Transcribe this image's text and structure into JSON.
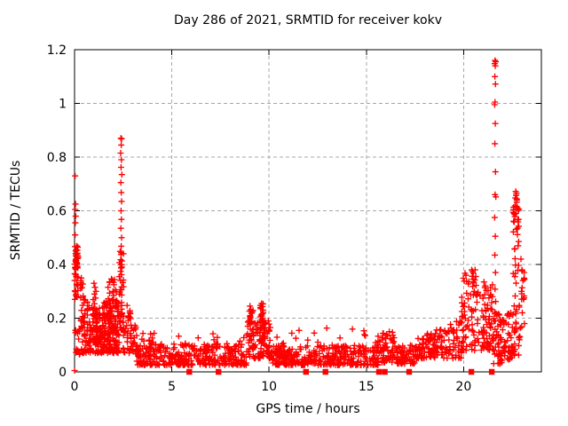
{
  "chart_data": {
    "type": "scatter",
    "title": "Day 286 of 2021, SRMTID for receiver kokv",
    "xlabel": "GPS time / hours",
    "ylabel": "SRMTID / TECUs",
    "meta": {
      "year": "2021",
      "day_of_year": "286",
      "receiver": "kokv"
    },
    "xlim": [
      0,
      24
    ],
    "ylim": [
      0,
      1.2
    ],
    "xticks": {
      "values": [
        0,
        5,
        10,
        15,
        20
      ],
      "labels": [
        "0",
        "5",
        "10",
        "15",
        "20"
      ]
    },
    "yticks": {
      "values": [
        0,
        0.2,
        0.4,
        0.6,
        0.8,
        1.0,
        1.2
      ],
      "labels": [
        "0",
        "0.2",
        "0.4",
        "0.6",
        "0.8",
        "1",
        "1.2"
      ]
    },
    "grid": {
      "show": true,
      "color": "#a8a8a8",
      "dash": [
        4,
        3
      ],
      "x_at": [
        5,
        10,
        15,
        20
      ],
      "y_at": [
        0.2,
        0.4,
        0.6,
        0.8,
        1.0
      ]
    },
    "legend": "none",
    "series": [
      {
        "name": "SRMTID",
        "marker": "plus",
        "color": "#ff0000"
      }
    ],
    "prng_seed": 286,
    "points": [
      [
        0.03,
        0.73
      ],
      [
        0.05,
        0.625
      ],
      [
        0.03,
        0.605
      ],
      [
        0.06,
        0.58
      ],
      [
        0.04,
        0.555
      ],
      [
        0.03,
        0.51
      ],
      [
        0.06,
        0.44
      ],
      [
        0.02,
        0.27
      ],
      [
        0.05,
        0.155
      ],
      [
        0.0,
        0.005
      ],
      [
        1.0,
        0.33
      ],
      [
        1.05,
        0.315
      ],
      [
        1.1,
        0.3
      ],
      [
        1.02,
        0.29
      ],
      [
        1.08,
        0.275
      ],
      [
        2.38,
        0.87
      ],
      [
        2.42,
        0.868
      ],
      [
        2.4,
        0.845
      ],
      [
        2.37,
        0.815
      ],
      [
        2.41,
        0.79
      ],
      [
        2.39,
        0.762
      ],
      [
        2.43,
        0.735
      ],
      [
        2.38,
        0.705
      ],
      [
        2.4,
        0.668
      ],
      [
        2.42,
        0.635
      ],
      [
        2.39,
        0.6
      ],
      [
        2.41,
        0.568
      ],
      [
        2.38,
        0.535
      ],
      [
        2.42,
        0.5
      ],
      [
        2.4,
        0.468
      ],
      [
        2.39,
        0.437
      ],
      [
        2.43,
        0.413
      ],
      [
        2.4,
        0.388
      ],
      [
        2.41,
        0.362
      ],
      [
        2.37,
        0.34
      ],
      [
        9.02,
        0.245
      ],
      [
        9.06,
        0.232
      ],
      [
        9.1,
        0.218
      ],
      [
        9.04,
        0.203
      ],
      [
        9.62,
        0.255
      ],
      [
        9.66,
        0.243
      ],
      [
        9.7,
        0.23
      ],
      [
        9.64,
        0.216
      ],
      [
        9.68,
        0.2
      ],
      [
        20.42,
        0.38
      ],
      [
        20.46,
        0.374
      ],
      [
        20.5,
        0.367
      ],
      [
        20.44,
        0.356
      ],
      [
        20.49,
        0.345
      ],
      [
        20.53,
        0.332
      ],
      [
        20.47,
        0.318
      ],
      [
        20.55,
        0.3
      ],
      [
        21.05,
        0.335
      ],
      [
        21.12,
        0.32
      ],
      [
        21.17,
        0.303
      ],
      [
        21.08,
        0.288
      ],
      [
        21.62,
        1.16
      ],
      [
        21.65,
        1.155
      ],
      [
        21.6,
        1.148
      ],
      [
        21.63,
        1.14
      ],
      [
        21.61,
        1.1
      ],
      [
        21.64,
        1.072
      ],
      [
        21.62,
        1.005
      ],
      [
        21.6,
        0.995
      ],
      [
        21.63,
        0.925
      ],
      [
        21.61,
        0.85
      ],
      [
        21.64,
        0.745
      ],
      [
        21.62,
        0.66
      ],
      [
        21.66,
        0.652
      ],
      [
        21.6,
        0.575
      ],
      [
        21.63,
        0.505
      ],
      [
        21.61,
        0.435
      ],
      [
        21.64,
        0.37
      ],
      [
        21.62,
        0.308
      ],
      [
        21.65,
        0.262
      ],
      [
        21.61,
        0.222
      ],
      [
        21.63,
        0.19
      ],
      [
        21.62,
        0.158
      ],
      [
        21.66,
        0.128
      ],
      [
        22.68,
        0.672
      ],
      [
        22.72,
        0.665
      ],
      [
        22.7,
        0.658
      ],
      [
        22.66,
        0.648
      ],
      [
        22.74,
        0.64
      ],
      [
        22.95,
        0.42
      ],
      [
        23.0,
        0.38
      ],
      [
        23.05,
        0.34
      ],
      [
        22.98,
        0.3
      ],
      [
        23.08,
        0.27
      ],
      [
        23.02,
        0.22
      ]
    ],
    "clusters": [
      {
        "x": [
          0.0,
          0.18
        ],
        "y": [
          0.27,
          0.47
        ],
        "n": 50,
        "bias": 0.85
      },
      {
        "x": [
          0.02,
          0.3
        ],
        "y": [
          0.04,
          0.16
        ],
        "n": 12,
        "bias": 1.0
      },
      {
        "x": [
          0.3,
          0.55
        ],
        "y": [
          0.13,
          0.35
        ],
        "n": 22,
        "bias": 1.4
      },
      {
        "x": [
          0.35,
          2.3
        ],
        "y": [
          0.07,
          0.27
        ],
        "n": 230,
        "bias": 1.6
      },
      {
        "x": [
          0.9,
          1.6
        ],
        "y": [
          0.1,
          0.22
        ],
        "n": 60,
        "bias": 1.0
      },
      {
        "x": [
          1.7,
          2.25
        ],
        "y": [
          0.14,
          0.36
        ],
        "n": 45,
        "bias": 1.3
      },
      {
        "x": [
          2.28,
          2.52
        ],
        "y": [
          0.15,
          0.45
        ],
        "n": 40,
        "bias": 1.0
      },
      {
        "x": [
          2.5,
          3.3
        ],
        "y": [
          0.07,
          0.3
        ],
        "n": 55,
        "bias": 1.4,
        "y_hi_end": 0.14
      },
      {
        "x": [
          3.2,
          8.85
        ],
        "y": [
          0.025,
          0.105
        ],
        "n": 330,
        "bias": 1.7
      },
      {
        "x": [
          3.3,
          8.8
        ],
        "y": [
          0.1,
          0.15
        ],
        "n": 14,
        "bias": 1.0
      },
      {
        "x": [
          3.8,
          4.15
        ],
        "y": [
          0.06,
          0.15
        ],
        "n": 15,
        "bias": 1.2
      },
      {
        "x": [
          8.85,
          10.15
        ],
        "y": [
          0.05,
          0.19
        ],
        "n": 90,
        "bias": 1.5
      },
      {
        "x": [
          8.95,
          9.2
        ],
        "y": [
          0.08,
          0.25
        ],
        "n": 22,
        "bias": 1.2
      },
      {
        "x": [
          9.55,
          9.8
        ],
        "y": [
          0.08,
          0.26
        ],
        "n": 26,
        "bias": 1.2
      },
      {
        "x": [
          10.15,
          15.6
        ],
        "y": [
          0.025,
          0.1
        ],
        "n": 340,
        "bias": 1.7
      },
      {
        "x": [
          10.3,
          15.5
        ],
        "y": [
          0.1,
          0.17
        ],
        "n": 16,
        "bias": 1.0
      },
      {
        "x": [
          15.55,
          16.45
        ],
        "y": [
          0.035,
          0.15
        ],
        "n": 65,
        "bias": 1.4
      },
      {
        "x": [
          16.45,
          17.65
        ],
        "y": [
          0.03,
          0.1
        ],
        "n": 75,
        "bias": 1.5
      },
      {
        "x": [
          17.65,
          19.9
        ],
        "y": [
          0.05,
          0.13
        ],
        "n": 140,
        "bias": 1.4,
        "y_hi_end": 0.2
      },
      {
        "x": [
          19.9,
          20.85
        ],
        "y": [
          0.08,
          0.38
        ],
        "n": 75,
        "bias": 1.6
      },
      {
        "x": [
          20.9,
          21.55
        ],
        "y": [
          0.08,
          0.33
        ],
        "n": 60,
        "bias": 1.6
      },
      {
        "x": [
          21.5,
          22.0
        ],
        "y": [
          0.03,
          0.22
        ],
        "n": 45,
        "bias": 1.4
      },
      {
        "x": [
          22.0,
          22.55
        ],
        "y": [
          0.04,
          0.22
        ],
        "n": 45,
        "bias": 1.4
      },
      {
        "x": [
          22.55,
          22.85
        ],
        "y": [
          0.25,
          0.67
        ],
        "n": 38,
        "bias": 0.55
      },
      {
        "x": [
          22.55,
          22.9
        ],
        "y": [
          0.06,
          0.25
        ],
        "n": 25,
        "bias": 1.2
      },
      {
        "x": [
          22.85,
          23.15
        ],
        "y": [
          0.15,
          0.42
        ],
        "n": 12,
        "bias": 1.0
      }
    ],
    "zero_markers": {
      "marker": "filled-square",
      "color": "#ff0000",
      "hours": [
        5.9,
        7.4,
        11.9,
        12.9,
        15.65,
        15.95,
        17.2,
        20.4,
        21.45
      ]
    }
  }
}
